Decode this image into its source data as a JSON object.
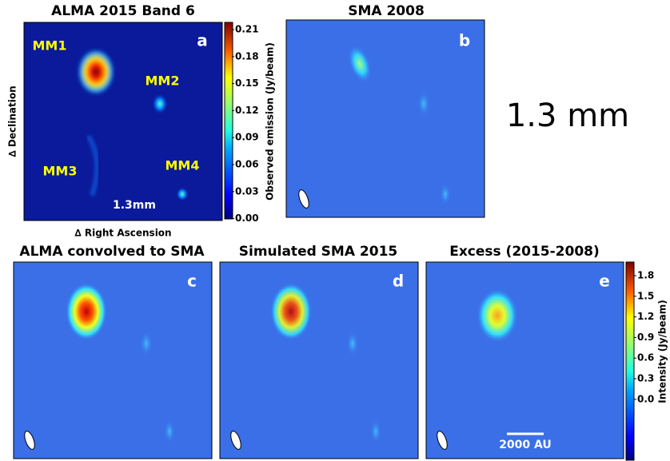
{
  "panels": [
    {
      "letter": "a",
      "title": "ALMA 2015 Band 6",
      "sources": [
        "MM1",
        "MM2",
        "MM3",
        "MM4"
      ],
      "wavelength": "1.3mm"
    },
    {
      "letter": "b",
      "title": "SMA 2008"
    },
    {
      "letter": "c",
      "title": "ALMA convolved to SMA"
    },
    {
      "letter": "d",
      "title": "Simulated SMA 2015"
    },
    {
      "letter": "e",
      "title": "Excess (2015-2008)",
      "scale_bar": "2000 AU"
    }
  ],
  "axes": {
    "x_label": "∆ Right Ascension",
    "y_label": "∆ Declination"
  },
  "band_label": "1.3 mm",
  "colorbars": [
    {
      "label": "Observed emission (Jy/beam)",
      "ticks": [
        "0.21",
        "0.18",
        "0.15",
        "0.12",
        "0.09",
        "0.06",
        "0.03",
        "0.00"
      ]
    },
    {
      "label": "Intensity (Jy/beam)",
      "ticks": [
        "1.8",
        "1.5",
        "1.2",
        "0.9",
        "0.6",
        "0.3",
        "0.0"
      ]
    }
  ]
}
